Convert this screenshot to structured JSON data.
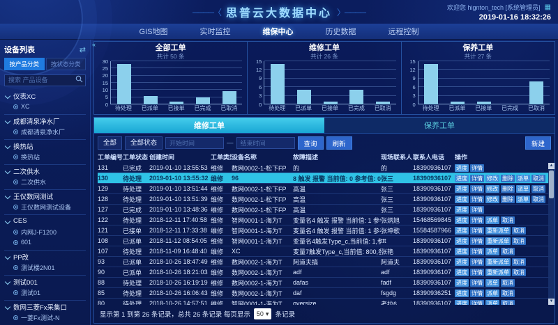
{
  "theme": {
    "accent_cyan": "#2fc3e6",
    "bar_color": "#8cd0ec",
    "button_blue": "#3f8fdd",
    "tab_active_blue": "#1f7be0"
  },
  "icons": {
    "swap": "⇄",
    "grid": "▦",
    "caret_down": "▾",
    "scroll_up": "▲",
    "scroll_down": "▼",
    "collapse": "«",
    "chevron_down": "css-chevron",
    "search": "svg-magnifier",
    "device": "css-ring"
  },
  "header": {
    "title": "思普云大数据中心",
    "welcome": "欢迎您 hignton_tech [系统管理员]",
    "datetime": "2019-01-16 18:32:26",
    "nav": [
      {
        "key": "gis",
        "label": "GIS地图",
        "active": false
      },
      {
        "key": "realtime",
        "label": "实时监控",
        "active": false
      },
      {
        "key": "maintenance",
        "label": "维保中心",
        "active": true
      },
      {
        "key": "history",
        "label": "历史数据",
        "active": false
      },
      {
        "key": "remote",
        "label": "远程控制",
        "active": false
      }
    ]
  },
  "sidebar": {
    "title": "设备列表",
    "tabs": [
      {
        "key": "by-product",
        "label": "按产品分类",
        "active": true
      },
      {
        "key": "by-status",
        "label": "按状态分类",
        "active": false
      }
    ],
    "search_placeholder": "搜索 产品设备",
    "tree": [
      {
        "group": "仪表XC",
        "children": [
          "XC"
        ]
      },
      {
        "group": "成都清泉净水厂",
        "children": [
          "成都清泉净水厂"
        ]
      },
      {
        "group": "换热站",
        "children": [
          "换热站"
        ]
      },
      {
        "group": "二次供水",
        "children": [
          "二次供水"
        ]
      },
      {
        "group": "王仪数网测试",
        "children": [
          "王仪数网测试设备"
        ]
      },
      {
        "group": "CES",
        "children": [
          "内网J-F1200",
          "601"
        ]
      },
      {
        "group": "PP改",
        "children": [
          "测试楼2N01"
        ]
      },
      {
        "group": "测试001",
        "children": [
          "测试01"
        ]
      },
      {
        "group": "数网三菱Fx采集口",
        "children": [
          "一菱Fx测试-N"
        ]
      }
    ]
  },
  "chart_data": [
    {
      "type": "bar",
      "title": "全部工单",
      "subtitle": "共计 50 条",
      "categories": [
        "待处理",
        "已派单",
        "已接单",
        "已完成",
        "已取消"
      ],
      "values": [
        28,
        6,
        2,
        5,
        9
      ],
      "ylim": [
        0,
        30
      ],
      "yticks": [
        0,
        5,
        10,
        15,
        20,
        25,
        30
      ],
      "grid": true,
      "legend": false
    },
    {
      "type": "bar",
      "title": "维修工单",
      "subtitle": "共计 26 条",
      "categories": [
        "待处理",
        "已派单",
        "已接单",
        "已完成",
        "已取消"
      ],
      "values": [
        14,
        5,
        1,
        5,
        1
      ],
      "ylim": [
        0,
        15
      ],
      "yticks": [
        0,
        3,
        6,
        9,
        12,
        15
      ],
      "grid": true,
      "legend": false
    },
    {
      "type": "bar",
      "title": "保养工单",
      "subtitle": "共计 27 条",
      "categories": [
        "待处理",
        "已派单",
        "已接单",
        "已完成",
        "已取消"
      ],
      "values": [
        14,
        1,
        1,
        0,
        8
      ],
      "ylim": [
        0,
        15
      ],
      "yticks": [
        0,
        3,
        6,
        9,
        12,
        15
      ],
      "grid": true,
      "legend": false
    }
  ],
  "workorders": {
    "tabs": [
      {
        "key": "repair",
        "label": "维修工单",
        "active": true
      },
      {
        "key": "maintain",
        "label": "保养工单",
        "active": false
      }
    ],
    "filters": {
      "category_value": "全部",
      "status_value": "全部状态",
      "start_placeholder": "开始时间",
      "end_placeholder": "结束时间",
      "separator": "—",
      "query": "查询",
      "refresh": "刷新",
      "create": "新建"
    },
    "columns": [
      "工单编号",
      "工单状态",
      "创建时间",
      "工单类型",
      "设备名称",
      "故障描述",
      "现场联系人",
      "联系人电话",
      "操作"
    ],
    "rows": [
      {
        "id": "131",
        "status": "已完成",
        "created": "2019-01-10 13:55:53",
        "type": "维修",
        "device": "数网0002-1-松下FP",
        "fault": "的",
        "contact": "的",
        "phone": "18390936107",
        "actions": [
          "进度",
          "详情"
        ],
        "selected": false
      },
      {
        "id": "130",
        "status": "待处理",
        "created": "2019-01-10 13:55:32",
        "type": "维修",
        "device": "96",
        "fault": "8 触发 报警 当前值: 0 参考值: 0",
        "contact": "张三",
        "phone": "18390936107",
        "actions": [
          "进度",
          "详情",
          "修改",
          "删除",
          "派单",
          "取消"
        ],
        "selected": true
      },
      {
        "id": "129",
        "status": "待处理",
        "created": "2019-01-10 13:51:44",
        "type": "维修",
        "device": "数网0002-1-松下FP",
        "fault": "高温",
        "contact": "张三",
        "phone": "18390936107",
        "actions": [
          "进度",
          "详情",
          "修改",
          "删除",
          "派单",
          "取消"
        ],
        "selected": false
      },
      {
        "id": "128",
        "status": "待处理",
        "created": "2019-01-10 13:51:39",
        "type": "维修",
        "device": "数网0002-1-松下FP",
        "fault": "高温",
        "contact": "张三",
        "phone": "18390936107",
        "actions": [
          "进度",
          "详情",
          "修改",
          "删除",
          "派单",
          "取消"
        ],
        "selected": false
      },
      {
        "id": "127",
        "status": "已完成",
        "created": "2019-01-10 13:48:36",
        "type": "维修",
        "device": "数网0002-1-松下FP",
        "fault": "高温",
        "contact": "张三",
        "phone": "18390936107",
        "actions": [
          "进度",
          "详情"
        ],
        "selected": false
      },
      {
        "id": "122",
        "status": "待处理",
        "created": "2018-12-11 17:40:58",
        "type": "维修",
        "device": "智网0001-1-海为T",
        "fault": "变量名4 触发 报警 当前值: 1 参考值: 1",
        "contact": "张炳旭",
        "phone": "15468569845",
        "actions": [
          "进度",
          "详情",
          "派单",
          "取消"
        ],
        "selected": false
      },
      {
        "id": "121",
        "status": "已接单",
        "created": "2018-12-11 17:33:38",
        "type": "维修",
        "device": "智网0001-1-海为T",
        "fault": "变量名4 触发 报警 当前值: 1 参考值: 1",
        "contact": "张坤歌",
        "phone": "15584587966",
        "actions": [
          "进度",
          "详情",
          "重新派单",
          "取消"
        ],
        "selected": false
      },
      {
        "id": "108",
        "status": "已派单",
        "created": "2018-11-12 08:54:05",
        "type": "维修",
        "device": "智网0001-1-海为T",
        "fault": "变量名4触发Type_c,当前值: 1,参考值",
        "contact": "ttt",
        "phone": "18390936107",
        "actions": [
          "进度",
          "详情",
          "重新派单",
          "取消"
        ],
        "selected": false
      },
      {
        "id": "107",
        "status": "待处理",
        "created": "2018-11-09 16:48:40",
        "type": "维修",
        "device": "XC",
        "fault": "变量7触发Type_c,当前值: 800,参考值: 800",
        "contact": "张艳",
        "phone": "18390936107",
        "actions": [
          "进度",
          "详情",
          "派单",
          "取消"
        ],
        "selected": false
      },
      {
        "id": "93",
        "status": "已派单",
        "created": "2018-10-26 18:47:49",
        "type": "维修",
        "device": "数网0002-1-海为T",
        "fault": "阿道夫搞",
        "contact": "阿道夫",
        "phone": "18390936107",
        "actions": [
          "进度",
          "详情",
          "重新派单",
          "取消"
        ],
        "selected": false
      },
      {
        "id": "90",
        "status": "已派单",
        "created": "2018-10-26 18:21:03",
        "type": "维修",
        "device": "数网0002-1-海为T",
        "fault": "adf",
        "contact": "adf",
        "phone": "18390936107",
        "actions": [
          "进度",
          "详情",
          "重新派单",
          "取消"
        ],
        "selected": false
      },
      {
        "id": "88",
        "status": "待处理",
        "created": "2018-10-26 16:19:19",
        "type": "维修",
        "device": "数网0002-1-海为T",
        "fault": "dafas",
        "contact": "fadf",
        "phone": "18390936107",
        "actions": [
          "进度",
          "详情",
          "派单",
          "取消"
        ],
        "selected": false
      },
      {
        "id": "85",
        "status": "待处理",
        "created": "2018-10-26 16:06:43",
        "type": "维修",
        "device": "数网0002-1-海为T",
        "fault": "daf",
        "contact": "fsgdg",
        "phone": "18390936251",
        "actions": [
          "进度",
          "详情",
          "派单",
          "取消"
        ],
        "selected": false
      },
      {
        "id": "80",
        "status": "待处理",
        "created": "2018-10-26 14:57:51",
        "type": "维修",
        "device": "智网0001-1-海为T",
        "fault": "oversize",
        "contact": "考拉6",
        "phone": "18390936107",
        "actions": [
          "进度",
          "详情",
          "派单",
          "取消"
        ],
        "selected": false
      }
    ],
    "pagination": {
      "text_prefix": "显示第 1 到第 26 条记录，总共 26 条记录 每页显示",
      "page_size": "50",
      "text_suffix": "条记录"
    }
  }
}
